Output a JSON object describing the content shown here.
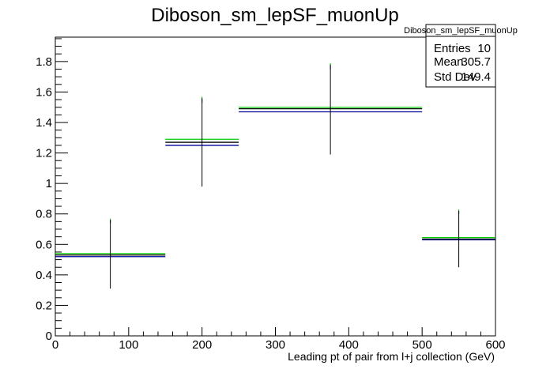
{
  "chart_data": {
    "type": "line",
    "title": "Diboson_sm_lepSF_muonUp",
    "xlabel": "Leading pt of pair from l+j collection (GeV)",
    "ylabel": "",
    "xlim": [
      0,
      600
    ],
    "ylim": [
      0,
      1.96
    ],
    "x_ticks": [
      0,
      100,
      200,
      300,
      400,
      500,
      600
    ],
    "x_tick_labels": [
      "0",
      "100",
      "200",
      "300",
      "400",
      "500",
      "600"
    ],
    "y_ticks": [
      0,
      0.2,
      0.4,
      0.6,
      0.8,
      1,
      1.2,
      1.4,
      1.6,
      1.8
    ],
    "y_tick_labels": [
      "0",
      "0.2",
      "0.4",
      "0.6",
      "0.8",
      "1",
      "1.2",
      "1.4",
      "1.6",
      "1.8"
    ],
    "grid": false,
    "bins": [
      {
        "xlow": 0,
        "xhigh": 150,
        "center": 75,
        "value": 0.53,
        "err_low": 0.31,
        "err_high": 0.76
      },
      {
        "xlow": 150,
        "xhigh": 250,
        "center": 200,
        "value": 1.27,
        "err_low": 0.98,
        "err_high": 1.56
      },
      {
        "xlow": 250,
        "xhigh": 500,
        "center": 375,
        "value": 1.49,
        "err_low": 1.19,
        "err_high": 1.78
      },
      {
        "xlow": 500,
        "xhigh": 600,
        "center": 550,
        "value": 0.635,
        "err_low": 0.45,
        "err_high": 0.82
      }
    ],
    "series": [
      {
        "color": "#00cc00",
        "values": [
          0.54,
          1.29,
          1.5,
          0.645
        ],
        "err_high": [
          0.77,
          1.57,
          1.79,
          0.83
        ]
      },
      {
        "color": "#000000",
        "values": [
          0.53,
          1.27,
          1.49,
          0.635
        ],
        "err_high": [
          0.76,
          1.56,
          1.78,
          0.82
        ]
      },
      {
        "color": "#000099",
        "values": [
          0.52,
          1.25,
          1.47,
          0.63
        ],
        "err_high": [
          0.76,
          1.55,
          1.77,
          0.82
        ]
      }
    ],
    "stats_box": {
      "title": "Diboson_sm_lepSF_muonUp",
      "rows": [
        {
          "label": "Entries",
          "value": "10"
        },
        {
          "label": "Mean",
          "value": "305.7"
        },
        {
          "label": "Std Dev",
          "value": "149.4"
        }
      ]
    }
  }
}
